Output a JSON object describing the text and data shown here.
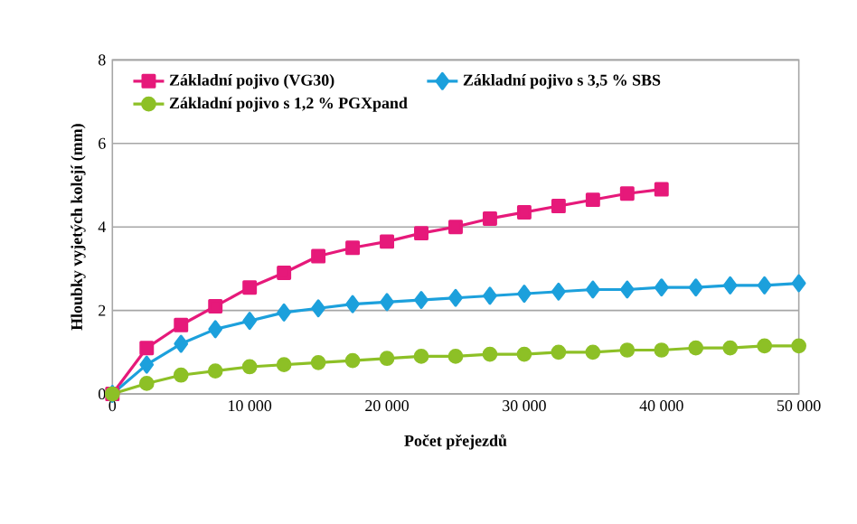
{
  "chart_data": {
    "type": "line",
    "xlabel": "Počet přejezdů",
    "ylabel": "Hloubky vyjetých kolejí (mm)",
    "xlim": [
      0,
      50000
    ],
    "ylim": [
      0,
      8
    ],
    "xticks": [
      0,
      {
        "value": 10000,
        "label": "10 000"
      },
      {
        "value": 20000,
        "label": "20 000"
      },
      {
        "value": 30000,
        "label": "30 000"
      },
      {
        "value": 40000,
        "label": "40 000"
      },
      {
        "value": 50000,
        "label": "50 000"
      }
    ],
    "yticks": [
      0,
      2,
      4,
      6,
      8
    ],
    "grid": "y",
    "legend": "top",
    "series": [
      {
        "name": "Základní pojivo (VG30)",
        "color": "#e6197a",
        "marker": "square",
        "x": [
          0,
          2500,
          5000,
          7500,
          10000,
          12500,
          15000,
          17500,
          20000,
          22500,
          25000,
          27500,
          30000,
          32500,
          35000,
          37500,
          40000
        ],
        "values": [
          0,
          1.1,
          1.65,
          2.1,
          2.55,
          2.9,
          3.3,
          3.5,
          3.65,
          3.85,
          4.0,
          4.2,
          4.35,
          4.5,
          4.65,
          4.8,
          4.9
        ]
      },
      {
        "name": "Základní pojivo s 3,5 % SBS",
        "color": "#1ca0dc",
        "marker": "diamond",
        "x": [
          0,
          2500,
          5000,
          7500,
          10000,
          12500,
          15000,
          17500,
          20000,
          22500,
          25000,
          27500,
          30000,
          32500,
          35000,
          37500,
          40000,
          42500,
          45000,
          47500,
          50000
        ],
        "values": [
          0,
          0.7,
          1.2,
          1.55,
          1.75,
          1.95,
          2.05,
          2.15,
          2.2,
          2.25,
          2.3,
          2.35,
          2.4,
          2.45,
          2.5,
          2.5,
          2.55,
          2.55,
          2.6,
          2.6,
          2.65
        ]
      },
      {
        "name": "Základní pojivo s 1,2 % PGXpand",
        "color": "#8dc026",
        "marker": "circle",
        "x": [
          0,
          2500,
          5000,
          7500,
          10000,
          12500,
          15000,
          17500,
          20000,
          22500,
          25000,
          27500,
          30000,
          32500,
          35000,
          37500,
          40000,
          42500,
          45000,
          47500,
          50000
        ],
        "values": [
          0,
          0.25,
          0.45,
          0.55,
          0.65,
          0.7,
          0.75,
          0.8,
          0.85,
          0.9,
          0.9,
          0.95,
          0.95,
          1.0,
          1.0,
          1.05,
          1.05,
          1.1,
          1.1,
          1.15,
          1.15
        ]
      }
    ]
  }
}
